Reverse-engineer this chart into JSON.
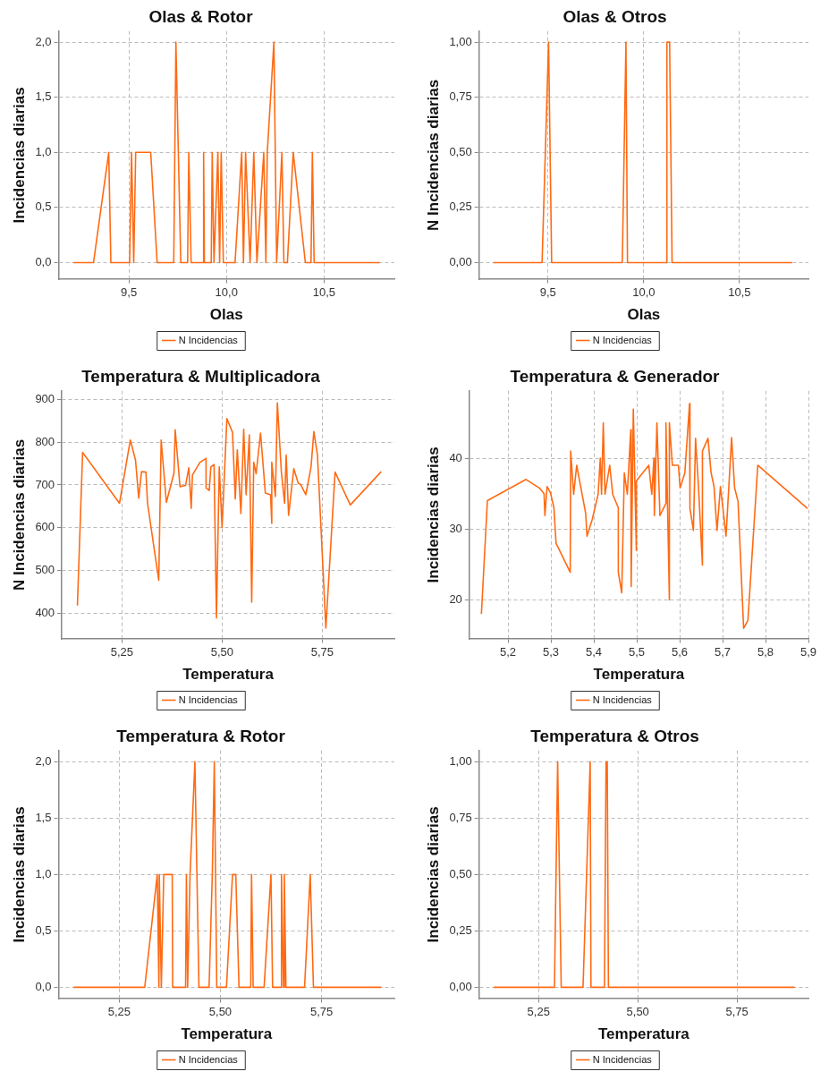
{
  "chart_data": [
    {
      "type": "line",
      "title": "Olas & Rotor",
      "xlabel": "Olas",
      "ylabel": "Incidencias diarias",
      "xlim": [
        9.14,
        10.86
      ],
      "xticks": [
        {
          "value": 9.5,
          "label": "9,5"
        },
        {
          "value": 10,
          "label": "10,0"
        },
        {
          "value": 10.5,
          "label": "10,5"
        }
      ],
      "ylim": [
        -0.15,
        2.1
      ],
      "yticks": [
        {
          "value": 0,
          "label": "0,0"
        },
        {
          "value": 0.5,
          "label": "0,5"
        },
        {
          "value": 1,
          "label": "1,0"
        },
        {
          "value": 1.5,
          "label": "1,5"
        },
        {
          "value": 2,
          "label": "2,0"
        }
      ],
      "grid": true,
      "legend": "bottom",
      "marker": "none",
      "line_style": "solid",
      "x": [
        9.216,
        9.319,
        9.397,
        9.408,
        9.504,
        9.514,
        9.525,
        9.535,
        9.612,
        9.645,
        9.73,
        9.741,
        9.766,
        9.801,
        9.807,
        9.819,
        9.881,
        9.883,
        9.887,
        9.922,
        9.927,
        9.936,
        9.956,
        9.965,
        9.973,
        9.984,
        10.044,
        10.078,
        10.087,
        10.098,
        10.121,
        10.14,
        10.156,
        10.191,
        10.202,
        10.209,
        10.243,
        10.257,
        10.284,
        10.294,
        10.312,
        10.342,
        10.404,
        10.433,
        10.44,
        10.449,
        10.785
      ],
      "series": [
        {
          "name": "N Incidencias",
          "color": "#ff6a13",
          "values": [
            0,
            0,
            1,
            0,
            0,
            1,
            0,
            1,
            1,
            0,
            0,
            2,
            0,
            0,
            1,
            0,
            0,
            1,
            0,
            0,
            1,
            0,
            1,
            0,
            1,
            0,
            0,
            1,
            0,
            1,
            0,
            1,
            0,
            1,
            0,
            1,
            2,
            0,
            1,
            0,
            0,
            1,
            0,
            0,
            1,
            0,
            0
          ]
        }
      ]
    },
    {
      "type": "line",
      "title": "Olas & Otros",
      "xlabel": "Olas",
      "ylabel": "N Incidencias diarias",
      "xlim": [
        9.14,
        10.86
      ],
      "xticks": [
        {
          "value": 9.5,
          "label": "9,5"
        },
        {
          "value": 10,
          "label": "10,0"
        },
        {
          "value": 10.5,
          "label": "10,5"
        }
      ],
      "ylim": [
        -0.075,
        1.05
      ],
      "yticks": [
        {
          "value": 0,
          "label": "0,00"
        },
        {
          "value": 0.25,
          "label": "0,25"
        },
        {
          "value": 0.5,
          "label": "0,50"
        },
        {
          "value": 0.75,
          "label": "0,75"
        },
        {
          "value": 1,
          "label": "1,00"
        }
      ],
      "grid": true,
      "legend": "bottom",
      "marker": "none",
      "line_style": "solid",
      "x": [
        9.216,
        9.469,
        9.503,
        9.519,
        9.888,
        9.907,
        9.915,
        10.118,
        10.121,
        10.135,
        10.148,
        10.776
      ],
      "series": [
        {
          "name": "N Incidencias",
          "color": "#ff6a13",
          "values": [
            0,
            0,
            1,
            0,
            0,
            1,
            0,
            0,
            1,
            1,
            0,
            0
          ]
        }
      ]
    },
    {
      "type": "line",
      "title": "Temperatura & Multiplicadora",
      "xlabel": "Temperatura",
      "ylabel": "N Incidencias diarias",
      "xlim": [
        5.1,
        5.93
      ],
      "xticks": [
        {
          "value": 5.25,
          "label": "5,25"
        },
        {
          "value": 5.5,
          "label": "5,50"
        },
        {
          "value": 5.75,
          "label": "5,75"
        }
      ],
      "ylim": [
        340,
        920
      ],
      "yticks": [
        400,
        500,
        600,
        700,
        800,
        900
      ],
      "grid": true,
      "legend": "bottom",
      "marker": "none",
      "line_style": "solid",
      "x": [
        5.139,
        5.152,
        5.244,
        5.271,
        5.284,
        5.292,
        5.299,
        5.31,
        5.314,
        5.342,
        5.348,
        5.361,
        5.38,
        5.383,
        5.395,
        5.409,
        5.417,
        5.423,
        5.426,
        5.445,
        5.46,
        5.46,
        5.468,
        5.472,
        5.48,
        5.486,
        5.493,
        5.5,
        5.512,
        5.526,
        5.533,
        5.538,
        5.547,
        5.554,
        5.56,
        5.568,
        5.574,
        5.579,
        5.585,
        5.596,
        5.608,
        5.621,
        5.624,
        5.624,
        5.633,
        5.638,
        5.648,
        5.656,
        5.66,
        5.666,
        5.679,
        5.69,
        5.696,
        5.709,
        5.722,
        5.729,
        5.738,
        5.759,
        5.782,
        5.82,
        5.897
      ],
      "series": [
        {
          "name": "N Incidencias",
          "color": "#ff6a13",
          "values": [
            418,
            776,
            657,
            805,
            758,
            669,
            731,
            730,
            657,
            477,
            805,
            659,
            728,
            829,
            696,
            699,
            740,
            645,
            723,
            753,
            762,
            693,
            687,
            742,
            748,
            389,
            742,
            600,
            855,
            823,
            667,
            782,
            633,
            830,
            677,
            817,
            426,
            753,
            726,
            821,
            681,
            677,
            610,
            753,
            673,
            892,
            730,
            657,
            770,
            629,
            738,
            704,
            701,
            677,
            742,
            825,
            770,
            365,
            730,
            653,
            731
          ]
        }
      ]
    },
    {
      "type": "line",
      "title": "Temperatura & Generador",
      "xlabel": "Temperatura",
      "ylabel": "Incidencias diarias",
      "xlim": [
        5.11,
        5.9
      ],
      "xticks": [
        {
          "value": 5.2,
          "label": "5,2"
        },
        {
          "value": 5.3,
          "label": "5,3"
        },
        {
          "value": 5.4,
          "label": "5,4"
        },
        {
          "value": 5.5,
          "label": "5,5"
        },
        {
          "value": 5.6,
          "label": "5,6"
        },
        {
          "value": 5.7,
          "label": "5,7"
        },
        {
          "value": 5.8,
          "label": "5,8"
        },
        {
          "value": 5.9,
          "label": "5,9"
        }
      ],
      "ylim": [
        14.5,
        49.5
      ],
      "yticks": [
        20,
        30,
        40
      ],
      "grid": true,
      "legend": "bottom",
      "marker": "none",
      "line_style": "solid",
      "x": [
        5.138,
        5.152,
        5.242,
        5.273,
        5.284,
        5.286,
        5.291,
        5.299,
        5.307,
        5.312,
        5.345,
        5.346,
        5.353,
        5.36,
        5.381,
        5.384,
        5.396,
        5.41,
        5.415,
        5.418,
        5.422,
        5.426,
        5.437,
        5.444,
        5.457,
        5.457,
        5.465,
        5.471,
        5.478,
        5.486,
        5.487,
        5.492,
        5.499,
        5.499,
        5.528,
        5.535,
        5.54,
        5.541,
        5.547,
        5.554,
        5.568,
        5.568,
        5.576,
        5.576,
        5.583,
        5.597,
        5.601,
        5.612,
        5.623,
        5.624,
        5.632,
        5.637,
        5.644,
        5.653,
        5.653,
        5.666,
        5.673,
        5.68,
        5.687,
        5.695,
        5.708,
        5.721,
        5.728,
        5.736,
        5.749,
        5.759,
        5.782,
        5.898
      ],
      "series": [
        {
          "name": "N Incidencias",
          "color": "#ff6a13",
          "values": [
            18,
            34,
            37,
            35.8,
            35,
            31.9,
            36,
            35.1,
            33,
            28,
            23.9,
            41,
            34.9,
            39,
            32.2,
            29,
            31.3,
            34.9,
            40,
            34.9,
            45,
            34.9,
            39,
            34.9,
            33,
            23.9,
            21,
            37.9,
            34.9,
            44,
            21.9,
            46.9,
            27,
            36.8,
            39,
            34.9,
            40,
            31.9,
            45,
            31.9,
            33.6,
            45,
            20,
            45,
            39,
            39,
            35.8,
            37.9,
            47.7,
            32.9,
            29.8,
            42.8,
            35.8,
            24.9,
            41,
            42.8,
            38,
            36,
            29.8,
            36,
            29,
            42.9,
            35.8,
            33.9,
            16,
            17.1,
            39,
            32.9
          ]
        }
      ]
    },
    {
      "type": "line",
      "title": "Temperatura & Rotor",
      "xlabel": "Temperatura",
      "ylabel": "Incidencias diarias",
      "xlim": [
        5.1,
        5.93
      ],
      "xticks": [
        {
          "value": 5.25,
          "label": "5,25"
        },
        {
          "value": 5.5,
          "label": "5,50"
        },
        {
          "value": 5.75,
          "label": "5,75"
        }
      ],
      "ylim": [
        -0.1,
        2.1
      ],
      "yticks": [
        {
          "value": 0,
          "label": "0,0"
        },
        {
          "value": 0.5,
          "label": "0,5"
        },
        {
          "value": 1,
          "label": "1,0"
        },
        {
          "value": 1.5,
          "label": "1,5"
        },
        {
          "value": 2,
          "label": "2,0"
        }
      ],
      "grid": true,
      "legend": "bottom",
      "marker": "none",
      "line_style": "solid",
      "x": [
        5.137,
        5.313,
        5.344,
        5.348,
        5.349,
        5.354,
        5.36,
        5.381,
        5.382,
        5.414,
        5.416,
        5.419,
        5.425,
        5.437,
        5.447,
        5.472,
        5.48,
        5.485,
        5.491,
        5.515,
        5.53,
        5.538,
        5.546,
        5.575,
        5.577,
        5.581,
        5.608,
        5.625,
        5.629,
        5.65,
        5.651,
        5.656,
        5.658,
        5.662,
        5.708,
        5.722,
        5.73,
        5.898
      ],
      "series": [
        {
          "name": "N Incidencias",
          "color": "#ff6a13",
          "values": [
            0,
            0,
            1,
            0,
            1,
            0,
            1,
            1,
            0,
            0,
            1,
            0,
            1,
            2,
            0,
            0,
            1,
            2,
            0,
            0,
            1,
            1,
            0,
            0,
            1,
            0,
            0,
            1,
            0,
            0,
            1,
            0,
            1,
            0,
            0,
            1,
            0,
            0
          ]
        }
      ]
    },
    {
      "type": "line",
      "title": "Temperatura & Otros",
      "xlabel": "Temperatura",
      "ylabel": "Incidencias diarias",
      "xlim": [
        5.1,
        5.93
      ],
      "xticks": [
        {
          "value": 5.25,
          "label": "5,25"
        },
        {
          "value": 5.5,
          "label": "5,50"
        },
        {
          "value": 5.75,
          "label": "5,75"
        }
      ],
      "ylim": [
        -0.05,
        1.05
      ],
      "yticks": [
        {
          "value": 0,
          "label": "0,00"
        },
        {
          "value": 0.25,
          "label": "0,25"
        },
        {
          "value": 0.5,
          "label": "0,50"
        },
        {
          "value": 0.75,
          "label": "0,75"
        },
        {
          "value": 1,
          "label": "1,00"
        }
      ],
      "grid": true,
      "legend": "bottom",
      "marker": "none",
      "line_style": "solid",
      "x": [
        5.137,
        5.29,
        5.298,
        5.307,
        5.362,
        5.38,
        5.382,
        5.416,
        5.42,
        5.423,
        5.426,
        5.895
      ],
      "series": [
        {
          "name": "N Incidencias",
          "color": "#ff6a13",
          "values": [
            0,
            0,
            1,
            0,
            0,
            1,
            0,
            0,
            1,
            1,
            0,
            0
          ]
        }
      ]
    }
  ]
}
